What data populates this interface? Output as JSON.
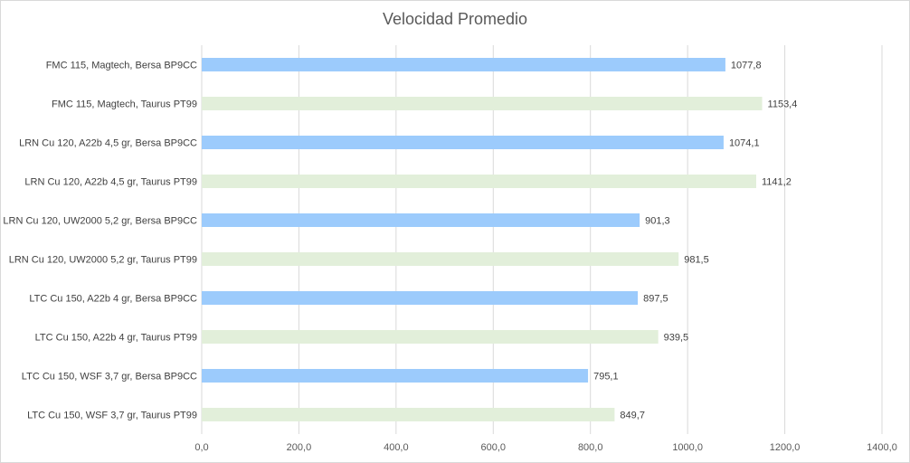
{
  "chart_data": {
    "type": "bar",
    "orientation": "horizontal",
    "title": "Velocidad Promedio",
    "xlabel": "",
    "ylabel": "",
    "xlim": [
      0,
      1400
    ],
    "x_ticks": [
      0,
      200,
      400,
      600,
      800,
      1000,
      1200,
      1400
    ],
    "x_tick_labels": [
      "0,0",
      "200,0",
      "400,0",
      "600,0",
      "800,0",
      "1000,0",
      "1200,0",
      "1400,0"
    ],
    "grid": true,
    "legend": "none",
    "categories": [
      "FMC 115, Magtech, Bersa BP9CC",
      "FMC 115, Magtech, Taurus PT99",
      "LRN Cu 120, A22b 4,5 gr, Bersa BP9CC",
      "LRN Cu 120, A22b 4,5 gr, Taurus PT99",
      "LRN Cu 120, UW2000 5,2 gr, Bersa BP9CC",
      "LRN Cu 120, UW2000 5,2 gr, Taurus PT99",
      "LTC Cu 150, A22b 4 gr, Bersa BP9CC",
      "LTC Cu 150, A22b 4 gr, Taurus PT99",
      "LTC Cu 150, WSF 3,7 gr, Bersa BP9CC",
      "LTC Cu 150, WSF 3,7 gr, Taurus PT99"
    ],
    "values": [
      1077.8,
      1153.4,
      1074.1,
      1141.2,
      901.3,
      981.5,
      897.5,
      939.5,
      795.1,
      849.7
    ],
    "value_labels": [
      "1077,8",
      "1153,4",
      "1074,1",
      "1141,2",
      "901,3",
      "981,5",
      "897,5",
      "939,5",
      "795,1",
      "849,7"
    ],
    "colors": [
      "#9ccbfc",
      "#e2efda",
      "#9ccbfc",
      "#e2efda",
      "#9ccbfc",
      "#e2efda",
      "#9ccbfc",
      "#e2efda",
      "#9ccbfc",
      "#e2efda"
    ],
    "gridline_color": "#d9d9d9"
  }
}
